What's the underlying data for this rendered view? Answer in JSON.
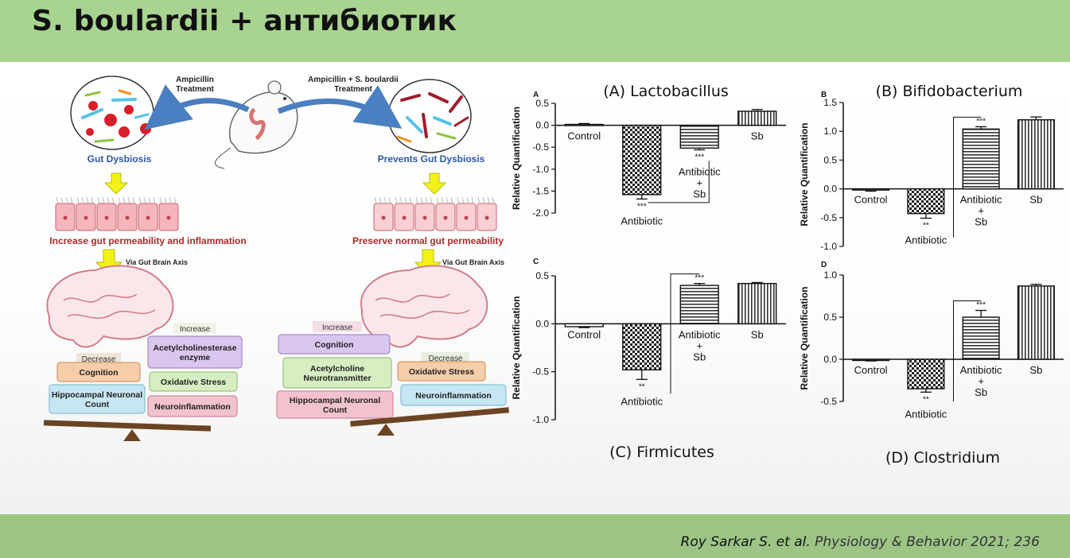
{
  "slide": {
    "title": "S. boulardii + антибиотик",
    "citation": {
      "authors": "Roy Sarkar S. et al.",
      "journal": "Physiology & Behavior 2021; 236"
    }
  },
  "diagram": {
    "left_arrow_label": [
      "Ampicillin",
      "Treatment"
    ],
    "right_arrow_label": [
      "Ampicillin + S. boulardii",
      "Treatment"
    ],
    "left_caption": "Gut Dysbiosis",
    "right_caption": "Prevents Gut Dysbiosis",
    "left_permeability": "Increase gut permeability and inflammation",
    "right_permeability": "Preserve normal gut permeability",
    "axis_label": "Via Gut Brain Axis",
    "left_balance": {
      "increase_tag": "Increase",
      "decrease_tag": "Decrease",
      "increase_items": [
        "Acetylcholinesterase enzyme",
        "Oxidative Stress",
        "Neuroinflammation"
      ],
      "decrease_items": [
        "Cognition",
        "Hippocampal Neuronal Count"
      ]
    },
    "right_balance": {
      "increase_tag": "Increase",
      "decrease_tag": "Decrease",
      "increase_items": [
        "Cognition",
        "Acetylcholine Neurotransmitter",
        "Hippocampal Neuronal Count"
      ],
      "decrease_items": [
        "Oxidative Stress",
        "Neuroinflammation"
      ]
    },
    "colors": {
      "arrow_blue": "#4a7fc1",
      "yellow_arrow": "#f2f21a",
      "caption_blue": "#2c57a8",
      "caption_red": "#b02a2a"
    }
  },
  "chart_data": [
    {
      "panel_letter": "A",
      "title": "(A) Lactobacillus",
      "type": "bar",
      "ylabel": "Relative Quantification",
      "ylim": [
        -2.0,
        0.5
      ],
      "yticks": [
        "0.5",
        "0.0",
        "-0.5",
        "-1.0",
        "-1.5",
        "-2.0"
      ],
      "categories": [
        "Control",
        "Antibiotic",
        "Antibiotic + Sb",
        "Sb"
      ],
      "values": [
        0.02,
        -1.58,
        -0.52,
        0.32
      ],
      "errors": [
        0.02,
        0.1,
        0.04,
        0.04
      ],
      "significance": [
        "",
        "***",
        "***",
        ""
      ],
      "comparison_bracket": [
        1,
        2
      ]
    },
    {
      "panel_letter": "B",
      "title": "(B) Bifidobacterium",
      "type": "bar",
      "ylabel": "Relative Quantification",
      "ylim": [
        -1.0,
        1.5
      ],
      "yticks": [
        "1.5",
        "1.0",
        "0.5",
        "0.0",
        "-0.5",
        "-1.0"
      ],
      "categories": [
        "Control",
        "Antibiotic",
        "Antibiotic + Sb",
        "Sb"
      ],
      "values": [
        -0.02,
        -0.43,
        1.04,
        1.2
      ],
      "errors": [
        0.02,
        0.08,
        0.04,
        0.05
      ],
      "significance": [
        "",
        "**",
        "***",
        ""
      ],
      "comparison_bracket": [
        1,
        2
      ]
    },
    {
      "panel_letter": "C",
      "title": "(C) Firmicutes",
      "type": "bar",
      "ylabel": "Relative Quantification",
      "ylim": [
        -1.0,
        0.5
      ],
      "yticks": [
        "0.5",
        "0.0",
        "-0.5",
        "-1.0"
      ],
      "categories": [
        "Control",
        "Antibiotic",
        "Antibiotic + Sb",
        "Sb"
      ],
      "values": [
        -0.03,
        -0.48,
        0.4,
        0.42
      ],
      "errors": [
        0.01,
        0.1,
        0.02,
        0.01
      ],
      "significance": [
        "",
        "**",
        "***",
        ""
      ],
      "comparison_bracket": [
        1,
        2
      ]
    },
    {
      "panel_letter": "D",
      "title": "(D) Clostridium",
      "type": "bar",
      "ylabel": "Relative Quantification",
      "ylim": [
        -0.5,
        1.0
      ],
      "yticks": [
        "1.0",
        "0.5",
        "0.0",
        "-0.5"
      ],
      "categories": [
        "Control",
        "Antibiotic",
        "Antibiotic + Sb",
        "Sb"
      ],
      "values": [
        -0.01,
        -0.35,
        0.5,
        0.87
      ],
      "errors": [
        0.01,
        0.04,
        0.08,
        0.02
      ],
      "significance": [
        "",
        "**",
        "***",
        ""
      ],
      "comparison_bracket": [
        1,
        2
      ]
    }
  ]
}
